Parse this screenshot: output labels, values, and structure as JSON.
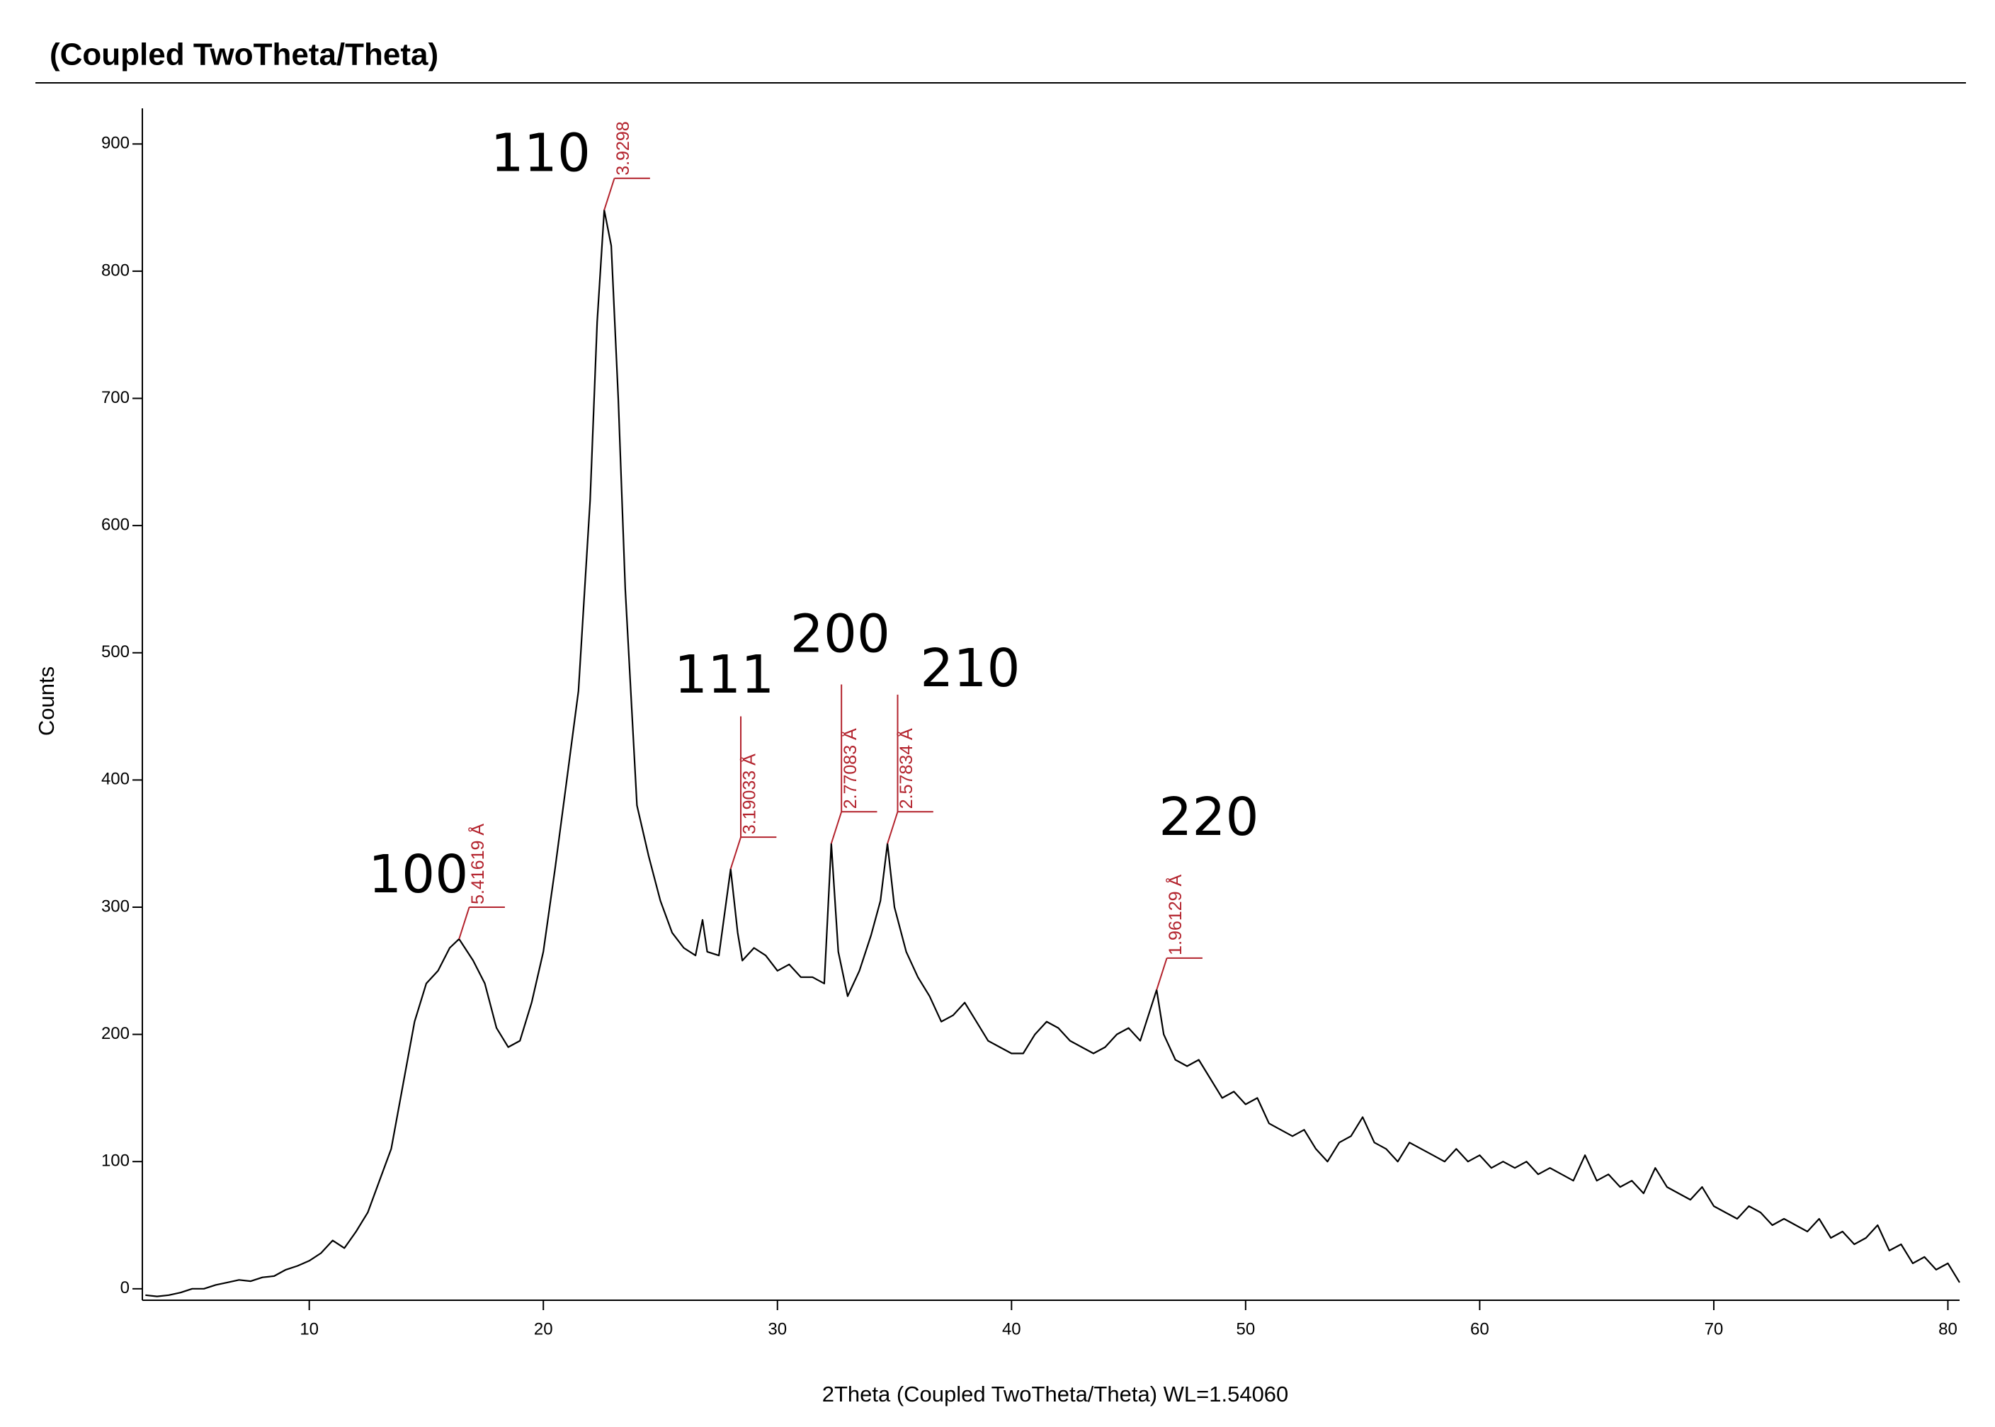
{
  "chart_data": {
    "type": "line",
    "title": "(Coupled TwoTheta/Theta)",
    "xlabel": "2Theta (Coupled TwoTheta/Theta) WL=1.54060",
    "ylabel": "Counts",
    "color": "#000000",
    "annotation_color": "#b3232d",
    "xlim": [
      2.87,
      80.5
    ],
    "ylim": [
      -9,
      928
    ],
    "xticks": [
      10,
      20,
      30,
      40,
      50,
      60,
      70,
      80
    ],
    "yticks": [
      0,
      100,
      200,
      300,
      400,
      500,
      600,
      700,
      800,
      900
    ],
    "x": [
      3,
      3.5,
      4,
      4.5,
      5,
      5.5,
      6,
      6.5,
      7,
      7.5,
      8,
      8.5,
      9,
      9.5,
      10,
      10.5,
      11,
      11.5,
      12,
      12.5,
      13,
      13.5,
      14,
      14.5,
      15,
      15.5,
      16,
      16.4,
      17,
      17.5,
      18,
      18.5,
      19,
      19.5,
      20,
      20.5,
      21,
      21.5,
      22,
      22.3,
      22.6,
      22.9,
      23.2,
      23.5,
      24,
      24.5,
      25,
      25.5,
      26,
      26.5,
      26.8,
      27,
      27.5,
      28,
      28.3,
      28.5,
      29,
      29.5,
      30,
      30.5,
      31,
      31.5,
      32,
      32.3,
      32.6,
      33,
      33.5,
      34,
      34.4,
      34.7,
      35,
      35.5,
      36,
      36.5,
      37,
      37.5,
      38,
      38.5,
      39,
      39.5,
      40,
      40.5,
      41,
      41.5,
      42,
      42.5,
      43,
      43.5,
      44,
      44.5,
      45,
      45.5,
      46.2,
      46.5,
      47,
      47.5,
      48,
      48.5,
      49,
      49.5,
      50,
      50.5,
      51,
      51.5,
      52,
      52.5,
      53,
      53.5,
      54,
      54.5,
      55,
      55.5,
      56,
      56.5,
      57,
      57.5,
      58,
      58.5,
      59,
      59.5,
      60,
      60.5,
      61,
      61.5,
      62,
      62.5,
      63,
      63.5,
      64,
      64.5,
      65,
      65.5,
      66,
      66.5,
      67,
      67.5,
      68,
      68.5,
      69,
      69.5,
      70,
      70.5,
      71,
      71.5,
      72,
      72.5,
      73,
      73.5,
      74,
      74.5,
      75,
      75.5,
      76,
      76.5,
      77,
      77.5,
      78,
      78.5,
      79,
      79.5,
      80,
      80.5
    ],
    "values": [
      -5,
      -6,
      -5,
      -3,
      0,
      0,
      3,
      5,
      7,
      6,
      9,
      10,
      15,
      18,
      22,
      28,
      38,
      32,
      45,
      60,
      85,
      110,
      160,
      210,
      240,
      250,
      268,
      275,
      258,
      240,
      205,
      190,
      195,
      225,
      265,
      330,
      400,
      470,
      620,
      760,
      848,
      820,
      700,
      550,
      380,
      340,
      305,
      280,
      268,
      262,
      290,
      265,
      262,
      330,
      280,
      258,
      268,
      262,
      250,
      255,
      245,
      245,
      240,
      350,
      265,
      230,
      250,
      278,
      305,
      350,
      300,
      265,
      245,
      230,
      210,
      215,
      225,
      210,
      195,
      190,
      185,
      185,
      200,
      210,
      205,
      195,
      190,
      185,
      190,
      200,
      205,
      195,
      235,
      200,
      180,
      175,
      180,
      165,
      150,
      155,
      145,
      150,
      130,
      125,
      120,
      125,
      110,
      100,
      115,
      120,
      135,
      115,
      110,
      100,
      115,
      110,
      105,
      100,
      110,
      100,
      105,
      95,
      100,
      95,
      100,
      90,
      95,
      90,
      85,
      105,
      85,
      90,
      80,
      85,
      75,
      95,
      80,
      75,
      70,
      80,
      65,
      60,
      55,
      65,
      60,
      50,
      55,
      50,
      45,
      55,
      40,
      45,
      35,
      40,
      50,
      30,
      35,
      20,
      25,
      15,
      20,
      5
    ],
    "peaks": [
      {
        "x": 16.4,
        "y": 275,
        "hkl": "100",
        "d_label": "5.41619 Å"
      },
      {
        "x": 22.6,
        "y": 848,
        "hkl": "110",
        "d_label": "3.9298"
      },
      {
        "x": 28.0,
        "y": 330,
        "hkl": "111",
        "d_label": "3.19033 Å"
      },
      {
        "x": 32.3,
        "y": 350,
        "hkl": "200",
        "d_label": "2.77083 Å"
      },
      {
        "x": 34.7,
        "y": 350,
        "hkl": "210",
        "d_label": "2.57834 Å"
      },
      {
        "x": 46.2,
        "y": 235,
        "hkl": "220",
        "d_label": "1.96129 Å"
      }
    ]
  }
}
